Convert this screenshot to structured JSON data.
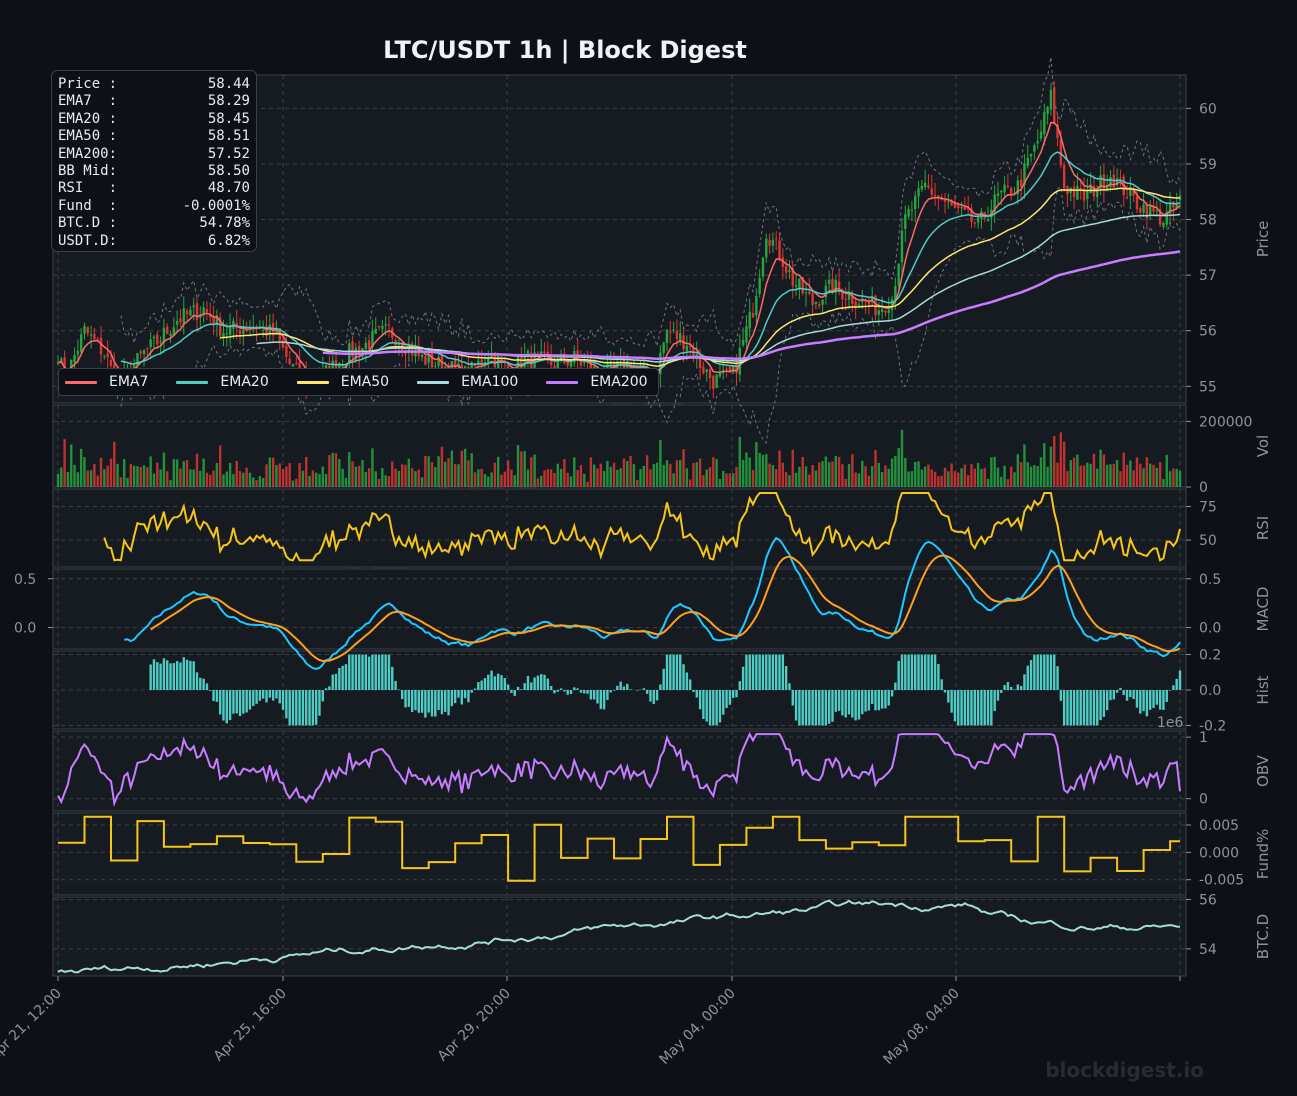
{
  "title": "LTC/USDT  1h  |  Block Digest",
  "watermark": "blockdigest.io",
  "stats": [
    {
      "label": "Price :",
      "value": "58.44"
    },
    {
      "label": "EMA7  :",
      "value": "58.29"
    },
    {
      "label": "EMA20 :",
      "value": "58.45"
    },
    {
      "label": "EMA50 :",
      "value": "58.51"
    },
    {
      "label": "EMA200:",
      "value": "57.52"
    },
    {
      "label": "BB Mid:",
      "value": "58.50"
    },
    {
      "label": "RSI   :",
      "value": "48.70"
    },
    {
      "label": "Fund  :",
      "value": "-0.0001%"
    },
    {
      "label": "BTC.D :",
      "value": "54.78%"
    },
    {
      "label": "USDT.D:",
      "value": "6.82%"
    }
  ],
  "legend": [
    {
      "name": "EMA7",
      "color": "#ff6b6b"
    },
    {
      "name": "EMA20",
      "color": "#4ecdc4"
    },
    {
      "name": "EMA50",
      "color": "#ffe66d"
    },
    {
      "name": "EMA100",
      "color": "#a8dadc"
    },
    {
      "name": "EMA200",
      "color": "#c77dff"
    }
  ],
  "colors": {
    "background": "#0d1117",
    "panel": "#161b22",
    "grid": "#3b4048",
    "up": "#26a641",
    "down": "#da3633",
    "rsi": "#f5c518",
    "macd": "#1ec8ff",
    "signal": "#ff9f1c",
    "hist": "#4ecdc4",
    "obv": "#c77dff",
    "fund": "#f5c518",
    "btcd": "#a8dadc"
  },
  "chart_data": {
    "type": "line",
    "x_ticks": [
      "Apr 21, 12:00",
      "Apr 25, 16:00",
      "Apr 29, 20:00",
      "May 04, 00:00",
      "May 08, 04:00"
    ],
    "price_anchors": [
      [
        0,
        55.6
      ],
      [
        2,
        55.1
      ],
      [
        8,
        56.0
      ],
      [
        14,
        55.6
      ],
      [
        18,
        55.0
      ],
      [
        26,
        55.6
      ],
      [
        30,
        55.8
      ],
      [
        36,
        56.2
      ],
      [
        44,
        56.4
      ],
      [
        50,
        56.0
      ],
      [
        60,
        56.1
      ],
      [
        66,
        55.9
      ],
      [
        70,
        55.4
      ],
      [
        76,
        55.0
      ],
      [
        82,
        55.3
      ],
      [
        88,
        55.6
      ],
      [
        92,
        55.7
      ],
      [
        96,
        55.9
      ],
      [
        100,
        56.0
      ],
      [
        104,
        55.8
      ],
      [
        110,
        55.5
      ],
      [
        124,
        55.2
      ],
      [
        130,
        55.6
      ],
      [
        136,
        55.3
      ],
      [
        142,
        55.5
      ],
      [
        150,
        55.4
      ],
      [
        156,
        55.5
      ],
      [
        164,
        55.2
      ],
      [
        172,
        55.4
      ],
      [
        180,
        55.1
      ],
      [
        184,
        56.0
      ],
      [
        190,
        55.8
      ],
      [
        194,
        55.4
      ],
      [
        198,
        55.1
      ],
      [
        204,
        55.2
      ],
      [
        210,
        56.4
      ],
      [
        214,
        57.8
      ],
      [
        218,
        57.4
      ],
      [
        222,
        56.9
      ],
      [
        228,
        56.5
      ],
      [
        234,
        56.8
      ],
      [
        240,
        56.6
      ],
      [
        248,
        56.4
      ],
      [
        252,
        56.6
      ],
      [
        256,
        58.0
      ],
      [
        262,
        58.6
      ],
      [
        270,
        58.2
      ],
      [
        278,
        57.9
      ],
      [
        284,
        58.4
      ],
      [
        290,
        58.6
      ],
      [
        296,
        59.4
      ],
      [
        300,
        60.2
      ],
      [
        304,
        58.6
      ],
      [
        310,
        58.4
      ],
      [
        318,
        58.8
      ],
      [
        326,
        58.3
      ],
      [
        334,
        58.0
      ],
      [
        340,
        58.4
      ]
    ],
    "price_axis": {
      "label": "Price",
      "ticks": [
        55,
        56,
        57,
        58,
        59,
        60
      ],
      "ylim": [
        54.7,
        60.6
      ]
    },
    "volume_axis": {
      "label": "Vol",
      "ticks": [
        "0",
        "200000"
      ],
      "ylim": [
        0,
        250000
      ]
    },
    "rsi_axis": {
      "label": "RSI",
      "ticks": [
        50,
        75
      ],
      "ylim": [
        30,
        88
      ]
    },
    "macd_axis": {
      "label": "MACD",
      "ticks": [
        "0.0",
        "0.5"
      ],
      "ylim": [
        -0.22,
        0.6
      ],
      "left_ticks": [
        "0.0",
        "0.5"
      ]
    },
    "hist_axis": {
      "label": "Hist",
      "ticks": [
        "-0.2",
        "0.0",
        "0.2"
      ],
      "ylim": [
        -0.22,
        0.22
      ]
    },
    "obv_axis": {
      "label": "OBV",
      "ticks": [
        "0",
        "1"
      ],
      "multiplier": "1e6",
      "ylim": [
        -0.2,
        1.1
      ]
    },
    "fund_axis": {
      "label": "Fund%",
      "ticks": [
        "-0.005",
        "0.000",
        "0.005"
      ],
      "ylim": [
        -0.0078,
        0.0072
      ]
    },
    "btcd_axis": {
      "label": "BTC.D",
      "ticks": [
        54,
        56
      ],
      "ylim": [
        52.9,
        56.1
      ]
    },
    "series": [
      {
        "name": "EMA7"
      },
      {
        "name": "EMA20"
      },
      {
        "name": "EMA50"
      },
      {
        "name": "EMA100"
      },
      {
        "name": "EMA200"
      }
    ]
  }
}
